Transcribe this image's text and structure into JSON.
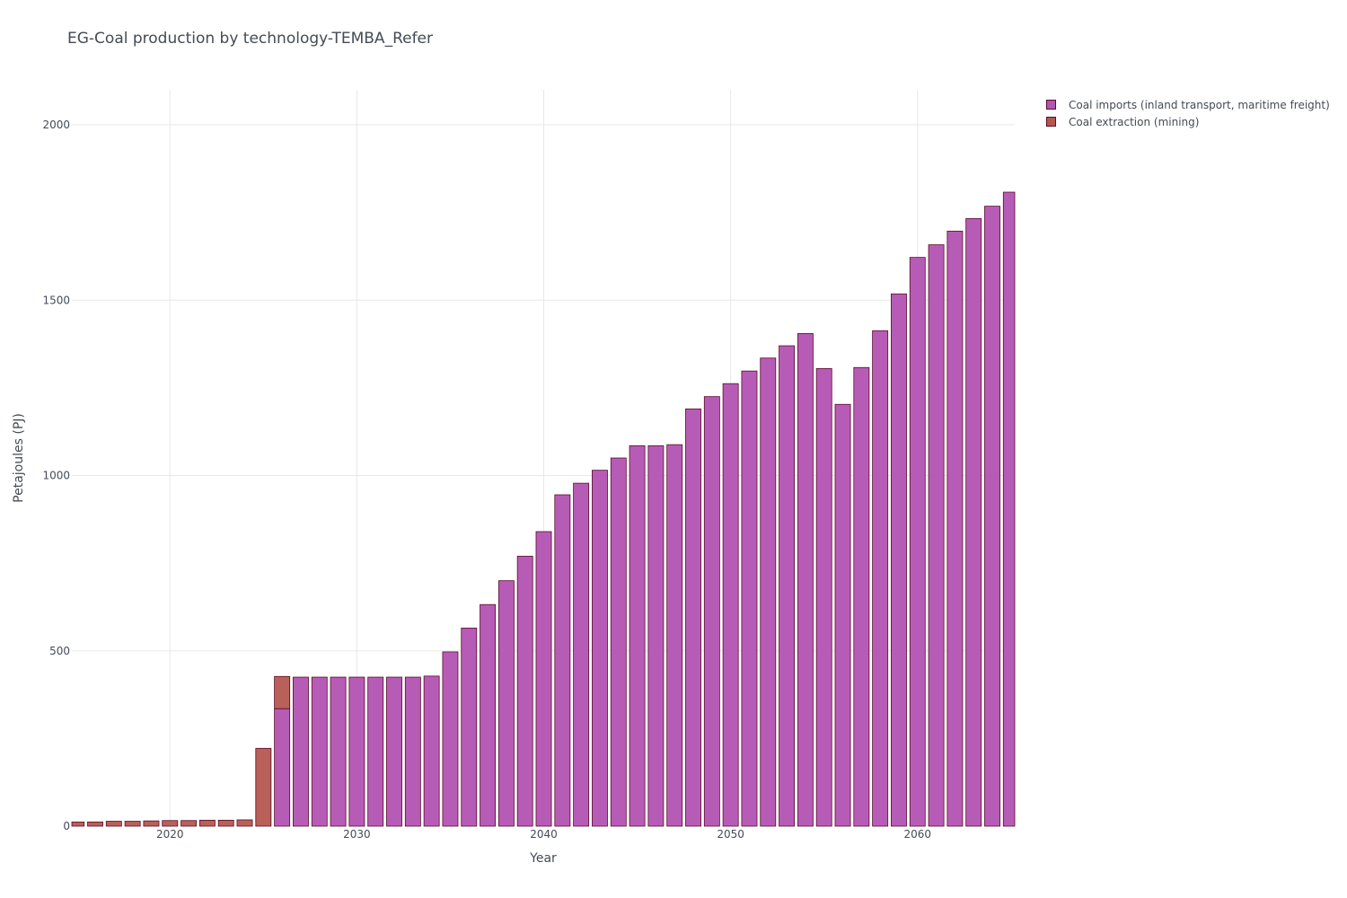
{
  "chart_data": {
    "type": "bar",
    "stacked": true,
    "title": "EG-Coal production by technology-TEMBA_Refer",
    "xlabel": "Year",
    "ylabel": "Petajoules (PJ)",
    "xlim": [
      2014.75,
      2065.2
    ],
    "ylim": [
      0,
      2100
    ],
    "xticks": [
      2020,
      2030,
      2040,
      2050,
      2060
    ],
    "yticks": [
      0,
      500,
      1000,
      1500,
      2000
    ],
    "grid": true,
    "legend_position": "top-right",
    "x": [
      2015,
      2016,
      2017,
      2018,
      2019,
      2020,
      2021,
      2022,
      2023,
      2024,
      2025,
      2026,
      2027,
      2028,
      2029,
      2030,
      2031,
      2032,
      2033,
      2034,
      2035,
      2036,
      2037,
      2038,
      2039,
      2040,
      2041,
      2042,
      2043,
      2044,
      2045,
      2046,
      2047,
      2048,
      2049,
      2050,
      2051,
      2052,
      2053,
      2054,
      2055,
      2056,
      2057,
      2058,
      2059,
      2060,
      2061,
      2062,
      2063,
      2064,
      2065
    ],
    "series": [
      {
        "name": "Coal extraction (mining)",
        "color": "#b5574f",
        "values": [
          12,
          12,
          14,
          14,
          15,
          16,
          16,
          17,
          17,
          18,
          222,
          92,
          0,
          0,
          0,
          0,
          0,
          0,
          0,
          0,
          0,
          0,
          0,
          0,
          0,
          0,
          0,
          0,
          0,
          0,
          0,
          0,
          0,
          0,
          0,
          0,
          0,
          0,
          0,
          0,
          0,
          0,
          0,
          0,
          0,
          0,
          0,
          0,
          0,
          0,
          0
        ]
      },
      {
        "name": "Coal imports (inland transport, maritime freight)",
        "color": "#b353b2",
        "values": [
          0,
          0,
          0,
          0,
          0,
          0,
          0,
          0,
          0,
          0,
          0,
          335,
          425,
          425,
          425,
          425,
          425,
          425,
          425,
          428,
          497,
          565,
          632,
          700,
          770,
          840,
          945,
          978,
          1015,
          1050,
          1085,
          1085,
          1088,
          1190,
          1225,
          1262,
          1298,
          1335,
          1370,
          1405,
          1305,
          1203,
          1308,
          1413,
          1518,
          1622,
          1658,
          1697,
          1733,
          1768,
          1808
        ]
      }
    ],
    "legend": [
      {
        "label": "Coal imports (inland transport, maritime freight)",
        "color": "#b353b2"
      },
      {
        "label": "Coal extraction (mining)",
        "color": "#b5574f"
      }
    ]
  }
}
